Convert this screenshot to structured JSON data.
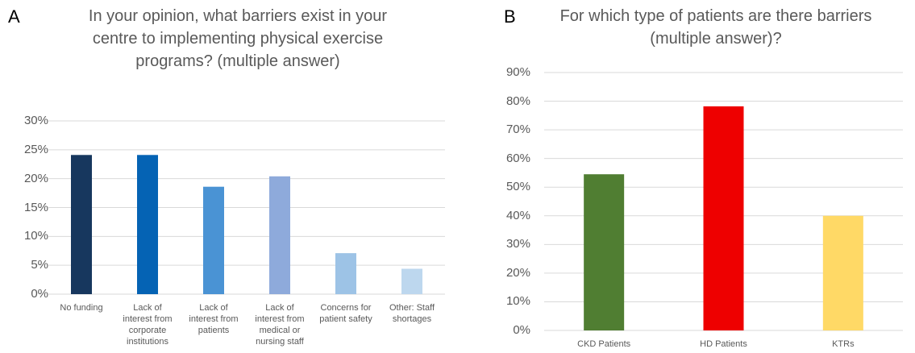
{
  "chart_data": [
    {
      "type": "bar",
      "label": "A",
      "title": "In your opinion, what barriers exist in your\ncentre to implementing physical exercise\nprograms? (multiple answer)",
      "categories": [
        "No funding",
        "Lack of\ninterest from\ncorporate\ninstitutions",
        "Lack of\ninterest from\npatients",
        "Lack of\ninterest from\nmedical or\nnursing staff",
        "Concerns for\npatient safety",
        "Other: Staff\nshortages"
      ],
      "values": [
        24.1,
        24.1,
        18.6,
        20.4,
        7.1,
        4.4
      ],
      "colors": [
        "#17375e",
        "#0563b4",
        "#4a93d4",
        "#8eaadb",
        "#9dc3e6",
        "#bdd7ee"
      ],
      "ylim": [
        0,
        30
      ],
      "yticks": [
        {
          "value": 0,
          "label": "0%"
        },
        {
          "value": 5,
          "label": "5%"
        },
        {
          "value": 10,
          "label": "10%"
        },
        {
          "value": 15,
          "label": "15%"
        },
        {
          "value": 20,
          "label": "20%"
        },
        {
          "value": 25,
          "label": "25%"
        },
        {
          "value": 30,
          "label": "30%"
        }
      ],
      "grid": true
    },
    {
      "type": "bar",
      "label": "B",
      "title": "For which type of patients are there barriers\n(multiple answer)?",
      "categories": [
        "CKD Patients",
        "HD Patients",
        "KTRs"
      ],
      "values": [
        54.5,
        78.2,
        40
      ],
      "colors": [
        "#507e32",
        "#ee0000",
        "#ffd966"
      ],
      "ylim": [
        0,
        90
      ],
      "yticks": [
        {
          "value": 0,
          "label": "0%"
        },
        {
          "value": 10,
          "label": "10%"
        },
        {
          "value": 20,
          "label": "20%"
        },
        {
          "value": 30,
          "label": "30%"
        },
        {
          "value": 40,
          "label": "40%"
        },
        {
          "value": 50,
          "label": "50%"
        },
        {
          "value": 60,
          "label": "60%"
        },
        {
          "value": 70,
          "label": "70%"
        },
        {
          "value": 80,
          "label": "80%"
        },
        {
          "value": 90,
          "label": "90%"
        }
      ],
      "grid": true
    }
  ]
}
